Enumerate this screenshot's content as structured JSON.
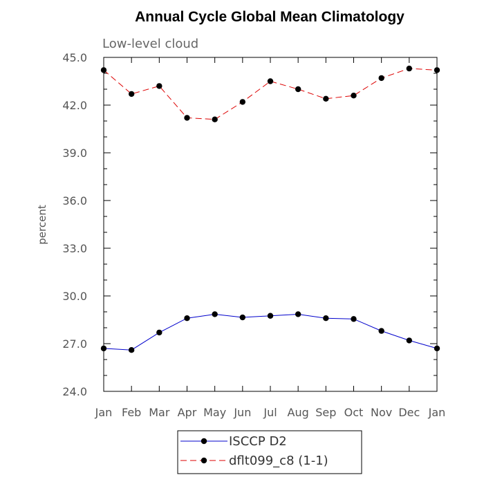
{
  "chart_data": {
    "type": "line",
    "title": "Annual Cycle Global Mean Climatology",
    "subtitle": "Low-level cloud",
    "xlabel": "",
    "ylabel": "percent",
    "categories": [
      "Jan",
      "Feb",
      "Mar",
      "Apr",
      "May",
      "Jun",
      "Jul",
      "Aug",
      "Sep",
      "Oct",
      "Nov",
      "Dec",
      "Jan"
    ],
    "ylim": [
      24.0,
      45.0
    ],
    "yticks": [
      "24.0",
      "27.0",
      "30.0",
      "33.0",
      "36.0",
      "39.0",
      "42.0",
      "45.0"
    ],
    "grid": false,
    "legend_position": "bottom-center",
    "series": [
      {
        "name": "ISCCP D2",
        "color": "#0000cc",
        "dash": "solid",
        "values": [
          26.7,
          26.6,
          27.7,
          28.6,
          28.85,
          28.65,
          28.75,
          28.85,
          28.6,
          28.55,
          27.8,
          27.2,
          26.7
        ]
      },
      {
        "name": "dflt099_c8 (1-1)",
        "color": "#dd0000",
        "dash": "dashed",
        "values": [
          44.2,
          42.7,
          43.2,
          41.2,
          41.1,
          42.2,
          43.5,
          43.0,
          42.4,
          42.6,
          43.7,
          44.3,
          44.2
        ]
      }
    ]
  }
}
